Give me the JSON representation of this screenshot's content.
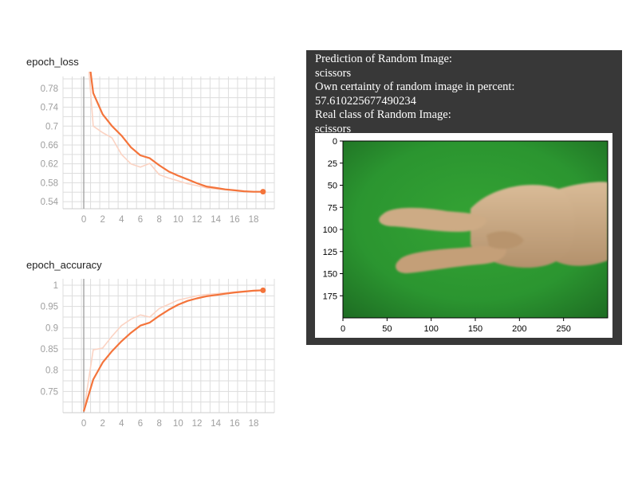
{
  "charts": {
    "loss": {
      "title": "epoch_loss"
    },
    "accuracy": {
      "title": "epoch_accuracy"
    }
  },
  "output": {
    "lines": [
      "Prediction of Random Image:",
      "scissors",
      "Own certainty of random image in percent:",
      "57.610225677490234",
      "Real class of Random Image:",
      "scissors"
    ]
  },
  "image_plot": {
    "xticks": [
      "0",
      "50",
      "100",
      "150",
      "200",
      "250"
    ],
    "yticks": [
      "0",
      "25",
      "50",
      "75",
      "100",
      "125",
      "150",
      "175"
    ],
    "subject": "hand-scissors-gesture",
    "background_color": "#2e9a2e"
  },
  "colors": {
    "accent": "#f4743b",
    "accent_light": "#fbd3c3",
    "grid": "#dddddd",
    "text": "#9e9e9e"
  },
  "chart_data": [
    {
      "type": "line",
      "title": "epoch_loss",
      "x": [
        0,
        1,
        2,
        3,
        4,
        5,
        6,
        7,
        8,
        9,
        10,
        11,
        12,
        13,
        14,
        15,
        16,
        17,
        18,
        19
      ],
      "series": [
        {
          "values": [
            0.93,
            0.77,
            0.725,
            0.7,
            0.68,
            0.655,
            0.638,
            0.632,
            0.617,
            0.604,
            0.595,
            0.587,
            0.579,
            0.572,
            0.569,
            0.566,
            0.564,
            0.562,
            0.561,
            0.561
          ]
        },
        {
          "values": [
            0.96,
            0.7,
            0.686,
            0.675,
            0.64,
            0.62,
            0.613,
            0.621,
            0.597,
            0.59,
            0.584,
            0.578,
            0.574,
            0.569,
            0.567,
            0.565,
            0.564,
            0.562,
            0.561,
            0.561
          ]
        }
      ],
      "xticks": [
        0,
        2,
        4,
        6,
        8,
        10,
        12,
        14,
        16,
        18
      ],
      "yticks": [
        0.54,
        0.58,
        0.62,
        0.66,
        0.7,
        0.74,
        0.78
      ],
      "xlim": [
        -2.2,
        20.2
      ],
      "ylim": [
        0.525,
        0.805
      ],
      "grid": true
    },
    {
      "type": "line",
      "title": "epoch_accuracy",
      "x": [
        0,
        1,
        2,
        3,
        4,
        5,
        6,
        7,
        8,
        9,
        10,
        11,
        12,
        13,
        14,
        15,
        16,
        17,
        18,
        19
      ],
      "series": [
        {
          "values": [
            0.703,
            0.778,
            0.818,
            0.845,
            0.868,
            0.888,
            0.905,
            0.912,
            0.928,
            0.942,
            0.954,
            0.963,
            0.969,
            0.974,
            0.977,
            0.98,
            0.983,
            0.985,
            0.987,
            0.988
          ]
        },
        {
          "values": [
            0.703,
            0.848,
            0.852,
            0.88,
            0.905,
            0.92,
            0.93,
            0.925,
            0.945,
            0.955,
            0.965,
            0.97,
            0.975,
            0.978,
            0.98,
            0.982,
            0.984,
            0.986,
            0.987,
            0.988
          ]
        }
      ],
      "xticks": [
        0,
        2,
        4,
        6,
        8,
        10,
        12,
        14,
        16,
        18
      ],
      "yticks": [
        0.75,
        0.8,
        0.85,
        0.9,
        0.95,
        1
      ],
      "xlim": [
        -2.2,
        20.2
      ],
      "ylim": [
        0.7,
        1.015
      ],
      "grid": true
    }
  ]
}
